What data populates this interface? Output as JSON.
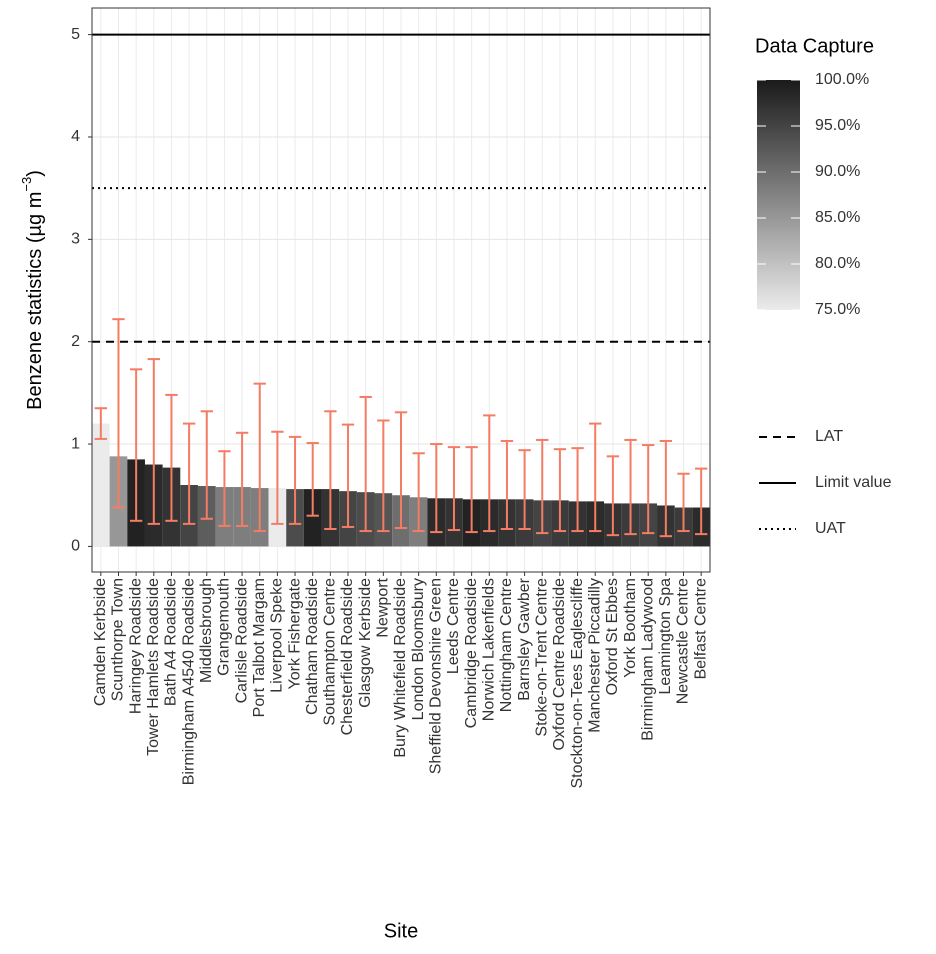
{
  "chart_data": {
    "type": "bar",
    "y_label": "Benzene statistics (µg m",
    "y_label_sup": "−3",
    "y_label_end": ")",
    "x_label": "Site",
    "categories": [
      "Camden Kerbside",
      "Scunthorpe Town",
      "Haringey Roadside",
      "Tower Hamlets Roadside",
      "Bath A4 Roadside",
      "Birmingham A4540 Roadside",
      "Middlesbrough",
      "Grangemouth",
      "Carlisle Roadside",
      "Port Talbot Margam",
      "Liverpool Speke",
      "York Fishergate",
      "Chatham Roadside",
      "Southampton Centre",
      "Chesterfield Roadside",
      "Glasgow Kerbside",
      "Newport",
      "Bury Whitefield Roadside",
      "London Bloomsbury",
      "Sheffield Devonshire Green",
      "Leeds Centre",
      "Cambridge Roadside",
      "Norwich Lakenfields",
      "Nottingham Centre",
      "Barnsley Gawber",
      "Stoke-on-Trent Centre",
      "Oxford Centre Roadside",
      "Stockton-on-Tees Eaglescliffe",
      "Manchester Piccadilly",
      "Oxford St Ebbes",
      "York Bootham",
      "Birmingham Ladywood",
      "Leamington Spa",
      "Newcastle Centre",
      "Belfast Centre"
    ],
    "values": [
      1.2,
      0.88,
      0.85,
      0.8,
      0.77,
      0.6,
      0.59,
      0.58,
      0.58,
      0.57,
      0.57,
      0.56,
      0.56,
      0.56,
      0.54,
      0.53,
      0.52,
      0.5,
      0.48,
      0.47,
      0.47,
      0.46,
      0.46,
      0.46,
      0.46,
      0.45,
      0.45,
      0.44,
      0.44,
      0.42,
      0.42,
      0.42,
      0.4,
      0.38,
      0.38
    ],
    "min": [
      1.05,
      0.38,
      0.25,
      0.22,
      0.25,
      0.22,
      0.27,
      0.2,
      0.2,
      0.15,
      0.22,
      0.22,
      0.3,
      0.17,
      0.19,
      0.15,
      0.15,
      0.18,
      0.15,
      0.14,
      0.16,
      0.14,
      0.15,
      0.17,
      0.17,
      0.13,
      0.15,
      0.15,
      0.15,
      0.11,
      0.12,
      0.13,
      0.1,
      0.15,
      0.12
    ],
    "max": [
      1.35,
      2.22,
      1.73,
      1.83,
      1.48,
      1.2,
      1.32,
      0.93,
      1.11,
      1.59,
      1.12,
      1.07,
      1.01,
      1.32,
      1.19,
      1.46,
      1.23,
      1.31,
      0.91,
      1.0,
      0.97,
      0.97,
      1.28,
      1.03,
      0.94,
      1.04,
      0.95,
      0.96,
      1.2,
      0.88,
      1.04,
      0.99,
      1.03,
      0.71,
      0.76
    ],
    "capture": [
      75,
      85,
      99,
      98,
      97,
      95,
      92,
      88,
      88,
      88,
      75,
      94,
      99,
      97,
      95,
      94,
      93,
      90,
      88,
      98,
      97,
      99,
      98,
      97,
      96,
      95,
      96,
      97,
      98,
      97,
      96,
      95,
      97,
      96,
      98
    ],
    "error_color": "#f47c64",
    "ylim": [
      -0.25,
      5.26
    ],
    "yticks": [
      0,
      1,
      2,
      3,
      4,
      5
    ],
    "grid": true,
    "colorbar": {
      "title": "Data Capture",
      "lim": [
        75,
        100
      ],
      "low_color": "#ebebeb",
      "high_color": "#1a1a1a",
      "ticks": [
        {
          "value": 100,
          "label": "100.0%"
        },
        {
          "value": 95,
          "label": "95.0%"
        },
        {
          "value": 90,
          "label": "90.0%"
        },
        {
          "value": 85,
          "label": "85.0%"
        },
        {
          "value": 80,
          "label": "80.0%"
        },
        {
          "value": 75,
          "label": "75.0%"
        }
      ]
    },
    "reference_lines": [
      {
        "name": "LAT",
        "value": 2,
        "dash": "8 6"
      },
      {
        "name": "Limit value",
        "value": 5,
        "dash": "none"
      },
      {
        "name": "UAT",
        "value": 3.5,
        "dash": "2 4"
      }
    ]
  }
}
